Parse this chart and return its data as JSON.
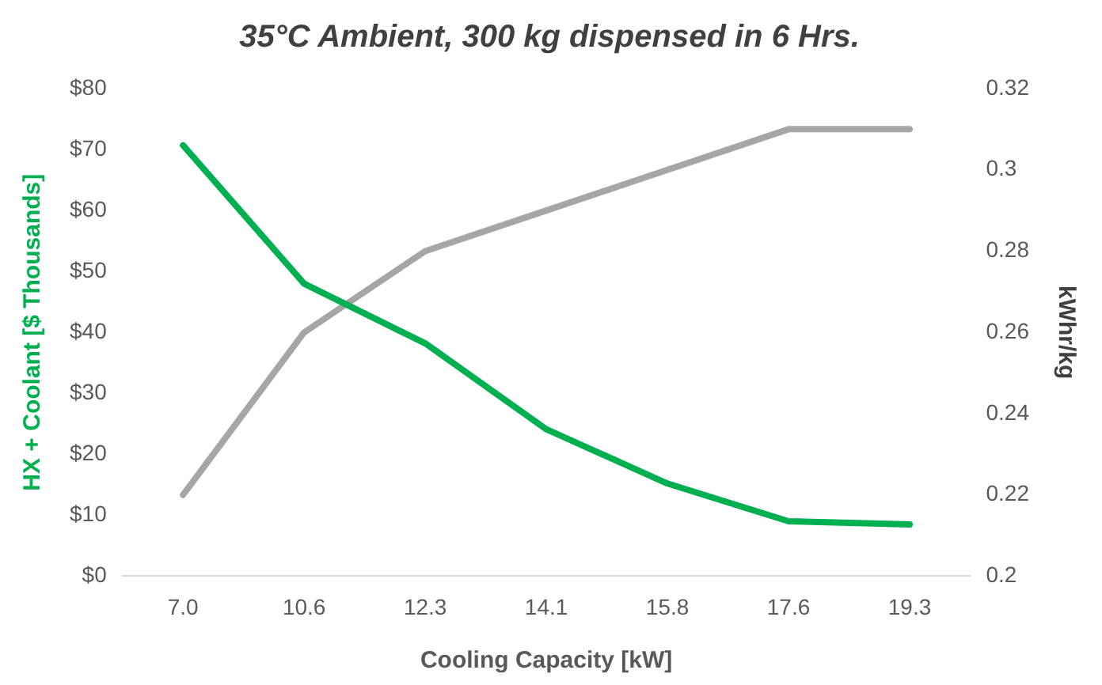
{
  "chart_data": {
    "type": "line",
    "title": "35°C Ambient, 300 kg dispensed in 6 Hrs.",
    "xlabel": "Cooling Capacity [kW]",
    "ylabel": "HX + Coolant [$ Thousands]",
    "y2label": "kWhr/kg",
    "categories": [
      "7.0",
      "10.6",
      "12.3",
      "14.1",
      "15.8",
      "17.6",
      "19.3"
    ],
    "series": [
      {
        "color": "#00b050",
        "values": [
          70.7,
          48,
          38.2,
          24.1,
          15.2,
          9,
          8.5
        ]
      },
      {
        "color": "#a6a6a6",
        "axis": "y2",
        "values": [
          0.22,
          0.26,
          0.28,
          0.29,
          0.3,
          0.31,
          0.31
        ]
      }
    ],
    "ylim": [
      0,
      80
    ],
    "yticks": [
      {
        "value": 0,
        "label": "$0"
      },
      {
        "value": 10,
        "label": "$10"
      },
      {
        "value": 20,
        "label": "$20"
      },
      {
        "value": 30,
        "label": "$30"
      },
      {
        "value": 40,
        "label": "$40"
      },
      {
        "value": 50,
        "label": "$50"
      },
      {
        "value": 60,
        "label": "$60"
      },
      {
        "value": 70,
        "label": "$70"
      },
      {
        "value": 80,
        "label": "$80"
      }
    ],
    "y2lim": [
      0.2,
      0.32
    ],
    "y2ticks": [
      0.2,
      0.22,
      0.24,
      0.26,
      0.28,
      0.3,
      0.32
    ],
    "grid": false,
    "legend": false,
    "marker": "none",
    "line_style": "solid"
  }
}
